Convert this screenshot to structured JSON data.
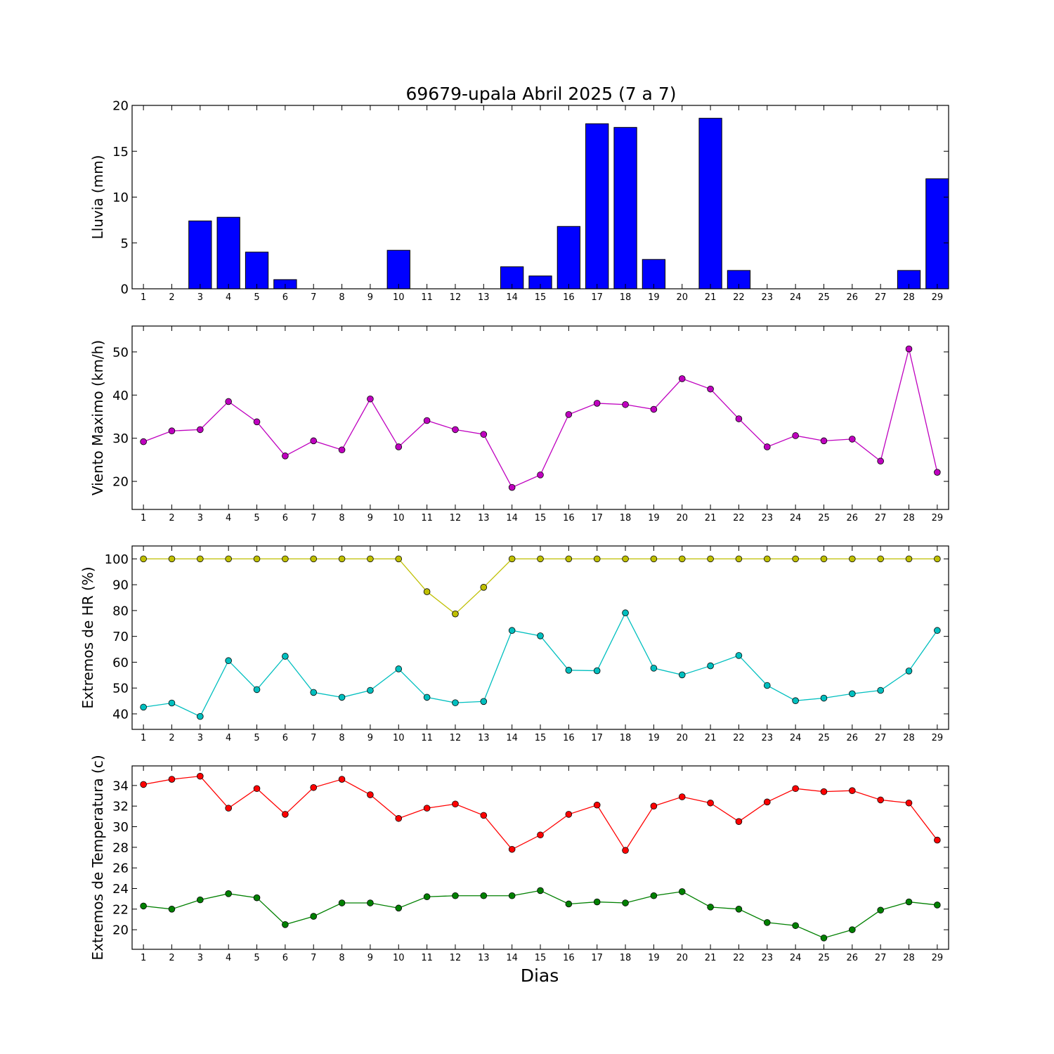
{
  "title": "69679-upala Abril 2025  (7 a 7)",
  "xlabel": "Dias",
  "chart_data": [
    {
      "type": "bar",
      "ylabel": "Lluvia (mm)",
      "ylim": [
        0,
        20
      ],
      "yticks": [
        0,
        5,
        10,
        15,
        20
      ],
      "categories": [
        1,
        2,
        3,
        4,
        5,
        6,
        7,
        8,
        9,
        10,
        11,
        12,
        13,
        14,
        15,
        16,
        17,
        18,
        19,
        20,
        21,
        22,
        23,
        24,
        25,
        26,
        27,
        28,
        29
      ],
      "series": [
        {
          "color": "#0000ff",
          "values": [
            0,
            0,
            7.4,
            7.8,
            4.0,
            1.0,
            0,
            0,
            0,
            4.2,
            0,
            0,
            0,
            2.4,
            1.4,
            6.8,
            18.0,
            17.6,
            3.2,
            0,
            18.6,
            2.0,
            0,
            0,
            0,
            0,
            0,
            2.0,
            12.0
          ]
        }
      ]
    },
    {
      "type": "line",
      "ylabel": "Viento Maximo (km/h)",
      "ylim": [
        13.5,
        56
      ],
      "yticks": [
        20,
        30,
        40,
        50
      ],
      "categories": [
        1,
        2,
        3,
        4,
        5,
        6,
        7,
        8,
        9,
        10,
        11,
        12,
        13,
        14,
        15,
        16,
        17,
        18,
        19,
        20,
        21,
        22,
        23,
        24,
        25,
        26,
        27,
        28,
        29
      ],
      "series": [
        {
          "color": "#bf00bf",
          "values": [
            29.2,
            31.7,
            32.0,
            38.5,
            33.8,
            25.9,
            29.4,
            27.3,
            39.1,
            28.0,
            34.1,
            32.0,
            30.9,
            18.6,
            21.5,
            35.5,
            38.1,
            37.8,
            36.7,
            43.8,
            41.4,
            34.5,
            28.0,
            30.6,
            29.4,
            29.8,
            24.7,
            50.7,
            22.1
          ]
        }
      ]
    },
    {
      "type": "line",
      "ylabel": "Extremos de HR (%)",
      "ylim": [
        34,
        105
      ],
      "yticks": [
        40,
        50,
        60,
        70,
        80,
        90,
        100
      ],
      "categories": [
        1,
        2,
        3,
        4,
        5,
        6,
        7,
        8,
        9,
        10,
        11,
        12,
        13,
        14,
        15,
        16,
        17,
        18,
        19,
        20,
        21,
        22,
        23,
        24,
        25,
        26,
        27,
        28,
        29
      ],
      "series": [
        {
          "color": "#bfbf00",
          "values": [
            100,
            100,
            100,
            100,
            100,
            100,
            100,
            100,
            100,
            100,
            87.3,
            78.7,
            89.0,
            100,
            100,
            100,
            100,
            100,
            100,
            100,
            100,
            100,
            100,
            100,
            100,
            100,
            100,
            100,
            100
          ]
        },
        {
          "color": "#00bfbf",
          "values": [
            42.6,
            44.2,
            39.0,
            60.6,
            49.4,
            62.3,
            48.3,
            46.4,
            49.1,
            57.4,
            46.4,
            44.3,
            44.8,
            72.3,
            70.2,
            56.9,
            56.7,
            79.1,
            57.7,
            55.1,
            58.6,
            62.6,
            51.0,
            45.1,
            46.1,
            47.8,
            49.1,
            56.6,
            72.3
          ]
        }
      ]
    },
    {
      "type": "line",
      "ylabel": "Extremos de Temperatura (c)",
      "ylim": [
        18.1,
        35.9
      ],
      "yticks": [
        20,
        22,
        24,
        26,
        28,
        30,
        32,
        34
      ],
      "categories": [
        1,
        2,
        3,
        4,
        5,
        6,
        7,
        8,
        9,
        10,
        11,
        12,
        13,
        14,
        15,
        16,
        17,
        18,
        19,
        20,
        21,
        22,
        23,
        24,
        25,
        26,
        27,
        28,
        29
      ],
      "series": [
        {
          "color": "#ff0000",
          "values": [
            34.1,
            34.6,
            34.9,
            31.8,
            33.7,
            31.2,
            33.8,
            34.6,
            33.1,
            30.8,
            31.8,
            32.2,
            31.1,
            27.8,
            29.2,
            31.2,
            32.1,
            27.7,
            32.0,
            32.9,
            32.3,
            30.5,
            32.4,
            33.7,
            33.4,
            33.5,
            32.6,
            32.3,
            28.7
          ]
        },
        {
          "color": "#008000",
          "values": [
            22.3,
            22.0,
            22.9,
            23.5,
            23.1,
            20.5,
            21.3,
            22.6,
            22.6,
            22.1,
            23.2,
            23.3,
            23.3,
            23.3,
            23.8,
            22.5,
            22.7,
            22.6,
            23.3,
            23.7,
            22.2,
            22.0,
            20.7,
            20.4,
            19.2,
            20.0,
            21.9,
            22.7,
            22.4
          ]
        }
      ]
    }
  ]
}
